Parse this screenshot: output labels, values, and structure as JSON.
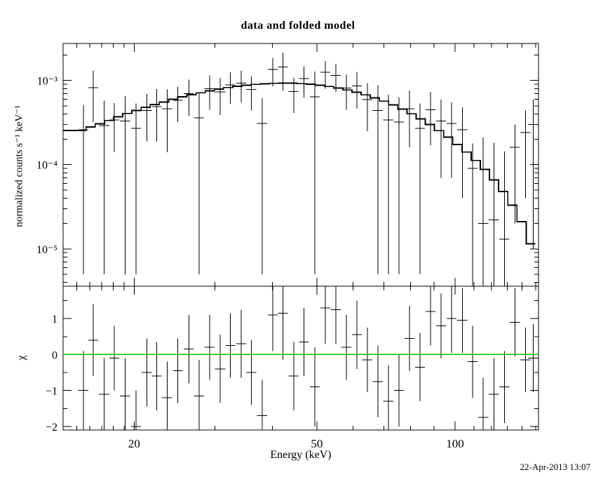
{
  "header": {
    "title": "data and folded model"
  },
  "footer": {
    "timestamp": "22-Apr-2013 13:07"
  },
  "chart_data": {
    "type": "scatter",
    "title": "data and folded model",
    "xlabel": "Energy (keV)",
    "x_scale": "log",
    "xlim": [
      14.0,
      152.0
    ],
    "x_major_ticks": [
      20,
      50,
      100
    ],
    "x_major_labels": [
      "20",
      "50",
      "100"
    ],
    "x_minor_ticks": [
      15,
      16,
      17,
      18,
      19,
      30,
      40,
      60,
      70,
      80,
      90,
      110,
      120,
      130,
      140,
      150
    ],
    "grid": false,
    "legend": "none",
    "top_panel": {
      "ylabel": "normalized counts s⁻¹ keV⁻¹",
      "y_scale": "log",
      "ylim": [
        3.6e-06,
        0.00275
      ],
      "y_major_ticks": [
        1e-05,
        0.0001,
        0.001
      ],
      "y_major_labels": [
        "10⁻⁵",
        "10⁻⁴",
        "10⁻³"
      ],
      "model": {
        "color": "#000000",
        "edges": [
          14.0,
          15.71,
          16.44,
          17.22,
          18.03,
          18.88,
          19.77,
          20.7,
          21.67,
          22.69,
          23.76,
          24.88,
          26.05,
          27.28,
          28.56,
          29.9,
          31.31,
          32.79,
          34.33,
          35.95,
          37.64,
          39.41,
          41.27,
          43.21,
          45.24,
          47.37,
          49.6,
          51.94,
          54.38,
          56.94,
          59.62,
          62.43,
          65.37,
          68.44,
          71.66,
          75.04,
          78.57,
          82.27,
          86.14,
          90.19,
          94.44,
          98.88,
          103.54,
          108.41,
          113.51,
          118.85,
          124.45,
          130.3,
          136.44,
          142.86,
          149.6
        ],
        "values": [
          0.000255,
          0.00028,
          0.000305,
          0.000335,
          0.00037,
          0.000405,
          0.00044,
          0.00048,
          0.000517,
          0.000555,
          0.0006,
          0.00064,
          0.000678,
          0.000715,
          0.000755,
          0.00079,
          0.000825,
          0.000855,
          0.00088,
          0.0009,
          0.000915,
          0.000925,
          0.00093,
          0.000928,
          0.000918,
          0.000902,
          0.000878,
          0.000848,
          0.000812,
          0.00077,
          0.000725,
          0.000675,
          0.000622,
          0.000568,
          0.000512,
          0.000457,
          0.000402,
          0.00035,
          0.0003,
          0.000254,
          0.000212,
          0.000174,
          0.000141,
          0.000112,
          8.8e-05,
          6.6e-05,
          4.8e-05,
          3.3e-05,
          2.1e-05,
          1.15e-05
        ]
      },
      "points_columns": [
        "x",
        "xerr",
        "y",
        "yerr"
      ],
      "points": [
        [
          15.5,
          0.4,
          0.00026,
          0.000255
        ],
        [
          16.3,
          0.4,
          0.00082,
          0.0005
        ],
        [
          17.2,
          0.45,
          0.00029,
          0.000285
        ],
        [
          18.1,
          0.45,
          0.00034,
          0.0002
        ],
        [
          19.1,
          0.5,
          0.00033,
          0.000325
        ],
        [
          20.2,
          0.5,
          0.00027,
          0.000265
        ],
        [
          21.3,
          0.55,
          0.00044,
          0.00025
        ],
        [
          22.4,
          0.55,
          0.00049,
          0.0003
        ],
        [
          23.6,
          0.6,
          0.00046,
          0.00032
        ],
        [
          24.9,
          0.6,
          0.00058,
          0.00026
        ],
        [
          26.3,
          0.65,
          0.0007,
          0.00032
        ],
        [
          27.7,
          0.7,
          0.00036,
          0.000355
        ],
        [
          29.2,
          0.75,
          0.0008,
          0.00035
        ],
        [
          30.8,
          0.8,
          0.00073,
          0.00034
        ],
        [
          32.4,
          0.8,
          0.00089,
          0.00036
        ],
        [
          34.2,
          0.85,
          0.00093,
          0.00038
        ],
        [
          36.0,
          0.9,
          0.00078,
          0.00034
        ],
        [
          38.0,
          0.95,
          0.00031,
          0.000305
        ],
        [
          40.1,
          1.0,
          0.00135,
          0.0005
        ],
        [
          42.2,
          1.05,
          0.00145,
          0.0007
        ],
        [
          44.5,
          1.1,
          0.00074,
          0.00033
        ],
        [
          46.9,
          1.15,
          0.00105,
          0.00042
        ],
        [
          49.5,
          1.25,
          0.00064,
          0.000635
        ],
        [
          52.2,
          1.3,
          0.00125,
          0.00045
        ],
        [
          55.0,
          1.4,
          0.00115,
          0.00042
        ],
        [
          58.0,
          1.45,
          0.00081,
          0.00036
        ],
        [
          61.1,
          1.5,
          0.00086,
          0.0004
        ],
        [
          64.4,
          1.6,
          0.00059,
          0.00034
        ],
        [
          67.9,
          1.7,
          0.00044,
          0.000435
        ],
        [
          71.6,
          1.8,
          0.00034,
          0.000335
        ],
        [
          75.5,
          1.9,
          0.00032,
          0.000315
        ],
        [
          79.6,
          2.0,
          0.00046,
          0.0003
        ],
        [
          83.9,
          2.1,
          0.00027,
          0.000265
        ],
        [
          88.5,
          2.2,
          0.00045,
          0.00028
        ],
        [
          93.3,
          2.3,
          0.00033,
          0.00026
        ],
        [
          98.3,
          2.45,
          0.00031,
          0.00024
        ],
        [
          103.7,
          2.6,
          0.00026,
          0.00022
        ],
        [
          109.3,
          2.7,
          9e-05,
          8.8e-05
        ],
        [
          115.2,
          2.9,
          2e-05,
          0.00019
        ],
        [
          121.5,
          3.0,
          2.2e-05,
          0.00016
        ],
        [
          128.1,
          3.2,
          1.3e-05,
          0.00013
        ],
        [
          135.0,
          3.4,
          0.00016,
          0.00014
        ],
        [
          142.4,
          3.6,
          0.00024,
          0.0002
        ],
        [
          148.0,
          3.7,
          0.0003,
          0.00029
        ]
      ]
    },
    "bottom_panel": {
      "ylabel": "χ",
      "y_scale": "linear",
      "ylim": [
        -2.1,
        1.9
      ],
      "y_major_ticks": [
        -2,
        -1,
        0,
        1
      ],
      "y_major_labels": [
        "−2",
        "−1",
        "0",
        "1"
      ],
      "y_minor_ticks": [
        -1.5,
        -0.5,
        0.5,
        1.5
      ],
      "zero_line": {
        "y": 0,
        "color": "#00c000"
      },
      "points_columns": [
        "x",
        "xerr",
        "chi",
        "err"
      ],
      "points": [
        [
          15.5,
          0.4,
          -1.0,
          1.1
        ],
        [
          16.3,
          0.4,
          0.4,
          1.0
        ],
        [
          17.2,
          0.45,
          -1.1,
          1.0
        ],
        [
          18.1,
          0.45,
          -0.1,
          0.9
        ],
        [
          19.1,
          0.5,
          -1.15,
          1.05
        ],
        [
          20.2,
          0.5,
          -2.0,
          1.0
        ],
        [
          21.3,
          0.55,
          -0.5,
          0.95
        ],
        [
          22.4,
          0.55,
          -0.6,
          0.95
        ],
        [
          23.6,
          0.6,
          -1.2,
          1.0
        ],
        [
          24.9,
          0.6,
          -0.45,
          0.9
        ],
        [
          26.3,
          0.65,
          0.15,
          0.95
        ],
        [
          27.7,
          0.7,
          -1.15,
          1.0
        ],
        [
          29.2,
          0.75,
          0.2,
          0.9
        ],
        [
          30.8,
          0.8,
          -0.4,
          0.95
        ],
        [
          32.4,
          0.8,
          0.25,
          0.9
        ],
        [
          34.2,
          0.85,
          0.3,
          0.95
        ],
        [
          36.0,
          0.9,
          -0.5,
          0.9
        ],
        [
          38.0,
          0.95,
          -1.7,
          1.0
        ],
        [
          40.1,
          1.0,
          1.1,
          1.0
        ],
        [
          42.2,
          1.05,
          1.15,
          1.3
        ],
        [
          44.5,
          1.1,
          -0.6,
          0.95
        ],
        [
          46.9,
          1.15,
          0.35,
          0.95
        ],
        [
          49.5,
          1.25,
          -0.9,
          1.1
        ],
        [
          52.2,
          1.3,
          1.3,
          1.0
        ],
        [
          55.0,
          1.4,
          1.25,
          0.95
        ],
        [
          58.0,
          1.45,
          0.2,
          0.9
        ],
        [
          61.1,
          1.5,
          0.55,
          0.95
        ],
        [
          64.4,
          1.6,
          -0.15,
          0.9
        ],
        [
          67.9,
          1.7,
          -0.75,
          1.0
        ],
        [
          71.6,
          1.8,
          -1.3,
          1.0
        ],
        [
          75.5,
          1.9,
          -1.0,
          1.0
        ],
        [
          79.6,
          2.0,
          0.45,
          0.9
        ],
        [
          83.9,
          2.1,
          -0.35,
          0.95
        ],
        [
          88.5,
          2.2,
          1.2,
          0.95
        ],
        [
          93.3,
          2.3,
          0.8,
          0.9
        ],
        [
          98.3,
          2.45,
          1.0,
          0.95
        ],
        [
          103.7,
          2.6,
          0.95,
          0.9
        ],
        [
          109.3,
          2.7,
          -0.2,
          1.0
        ],
        [
          115.2,
          2.9,
          -1.75,
          1.1
        ],
        [
          121.5,
          3.0,
          -1.1,
          1.0
        ],
        [
          128.1,
          3.2,
          -0.9,
          1.0
        ],
        [
          135.0,
          3.4,
          0.9,
          0.95
        ],
        [
          142.4,
          3.6,
          -0.15,
          0.9
        ],
        [
          148.0,
          3.7,
          -0.1,
          0.95
        ]
      ]
    }
  }
}
